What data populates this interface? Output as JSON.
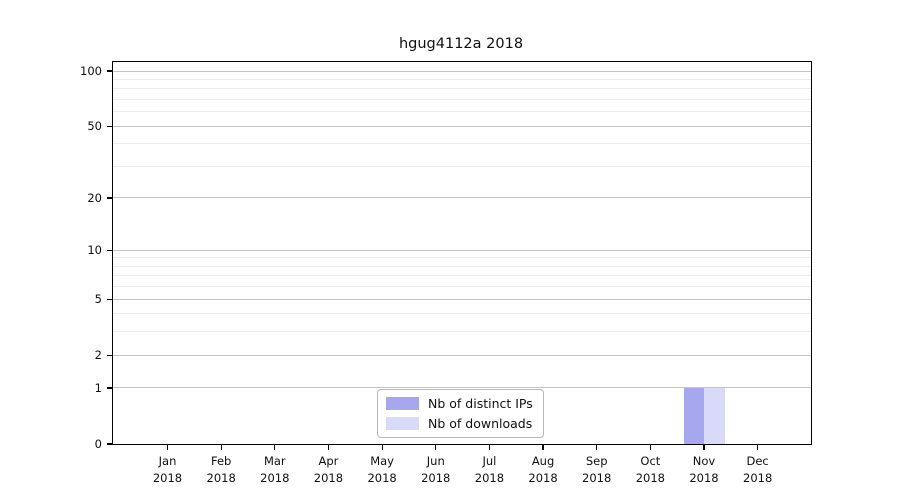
{
  "chart_data": {
    "type": "bar",
    "title": "hgug4112a 2018",
    "year": "2018",
    "months": [
      "Jan",
      "Feb",
      "Mar",
      "Apr",
      "May",
      "Jun",
      "Jul",
      "Aug",
      "Sep",
      "Oct",
      "Nov",
      "Dec"
    ],
    "categories": [
      "Jan 2018",
      "Feb 2018",
      "Mar 2018",
      "Apr 2018",
      "May 2018",
      "Jun 2018",
      "Jul 2018",
      "Aug 2018",
      "Sep 2018",
      "Oct 2018",
      "Nov 2018",
      "Dec 2018"
    ],
    "series": [
      {
        "name": "Nb of distinct IPs",
        "color": "#a7a7f0",
        "values": [
          0,
          0,
          0,
          0,
          0,
          0,
          0,
          0,
          0,
          0,
          1,
          0
        ]
      },
      {
        "name": "Nb of downloads",
        "color": "#d9d9f8",
        "values": [
          0,
          0,
          0,
          0,
          0,
          0,
          0,
          0,
          0,
          0,
          1,
          0
        ]
      }
    ],
    "y_axis": {
      "scale": "log1p",
      "ticks": [
        0,
        1,
        2,
        5,
        10,
        20,
        50,
        100
      ],
      "minor_gridlines": [
        3,
        4,
        6,
        7,
        8,
        9,
        30,
        40,
        60,
        70,
        80,
        90
      ],
      "max_tick": 100
    },
    "x_axis": {
      "label_year_suffix": "2018"
    },
    "legend": {
      "position": "bottom-center"
    },
    "colors": {
      "major_grid": "#c4c4c4",
      "minor_grid": "#ebebeb",
      "spine": "#000000",
      "text": "#111111"
    }
  }
}
